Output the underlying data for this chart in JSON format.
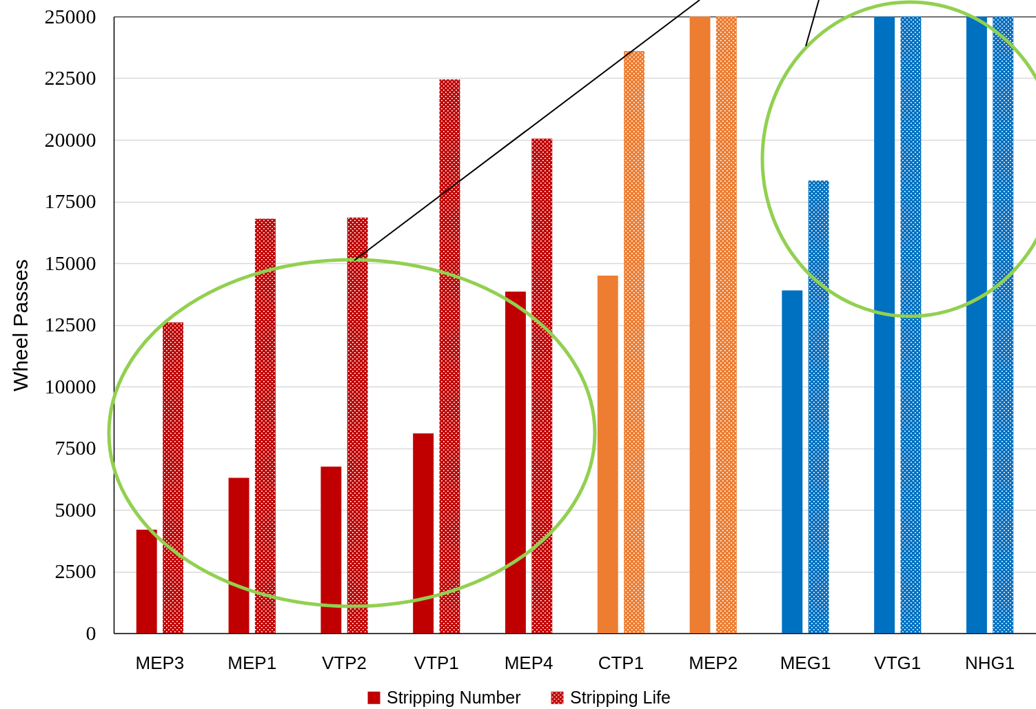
{
  "chart_data": {
    "type": "bar",
    "ylabel": "Wheel Passes",
    "categories": [
      "MEP3",
      "MEP1",
      "VTP2",
      "VTP1",
      "MEP4",
      "CTP1",
      "MEP2",
      "MEG1",
      "VTG1",
      "NHG1"
    ],
    "series": [
      {
        "name": "Stripping Number",
        "color": "#c00000",
        "colors": [
          "#c00000",
          "#c00000",
          "#c00000",
          "#c00000",
          "#c00000",
          "#ed7d31",
          "#ed7d31",
          "#0070c0",
          "#0070c0",
          "#0070c0"
        ],
        "values": [
          4200,
          6300,
          6750,
          8100,
          13850,
          14500,
          25000,
          13900,
          25000,
          25000
        ]
      },
      {
        "name": "Stripping Life",
        "color": "#c00000",
        "colors": [
          "#c00000",
          "#c00000",
          "#c00000",
          "#c00000",
          "#c00000",
          "#ed7d31",
          "#ed7d31",
          "#0070c0",
          "#0070c0",
          "#0070c0"
        ],
        "values": [
          12600,
          16800,
          16850,
          22450,
          20050,
          23600,
          25000,
          18350,
          25000,
          25000
        ]
      }
    ],
    "ylim": [
      0,
      25000
    ],
    "yticks": [
      0,
      2500,
      5000,
      7500,
      10000,
      12500,
      15000,
      17500,
      20000,
      22500,
      25000
    ],
    "grid": "y",
    "legend": "bottom"
  }
}
